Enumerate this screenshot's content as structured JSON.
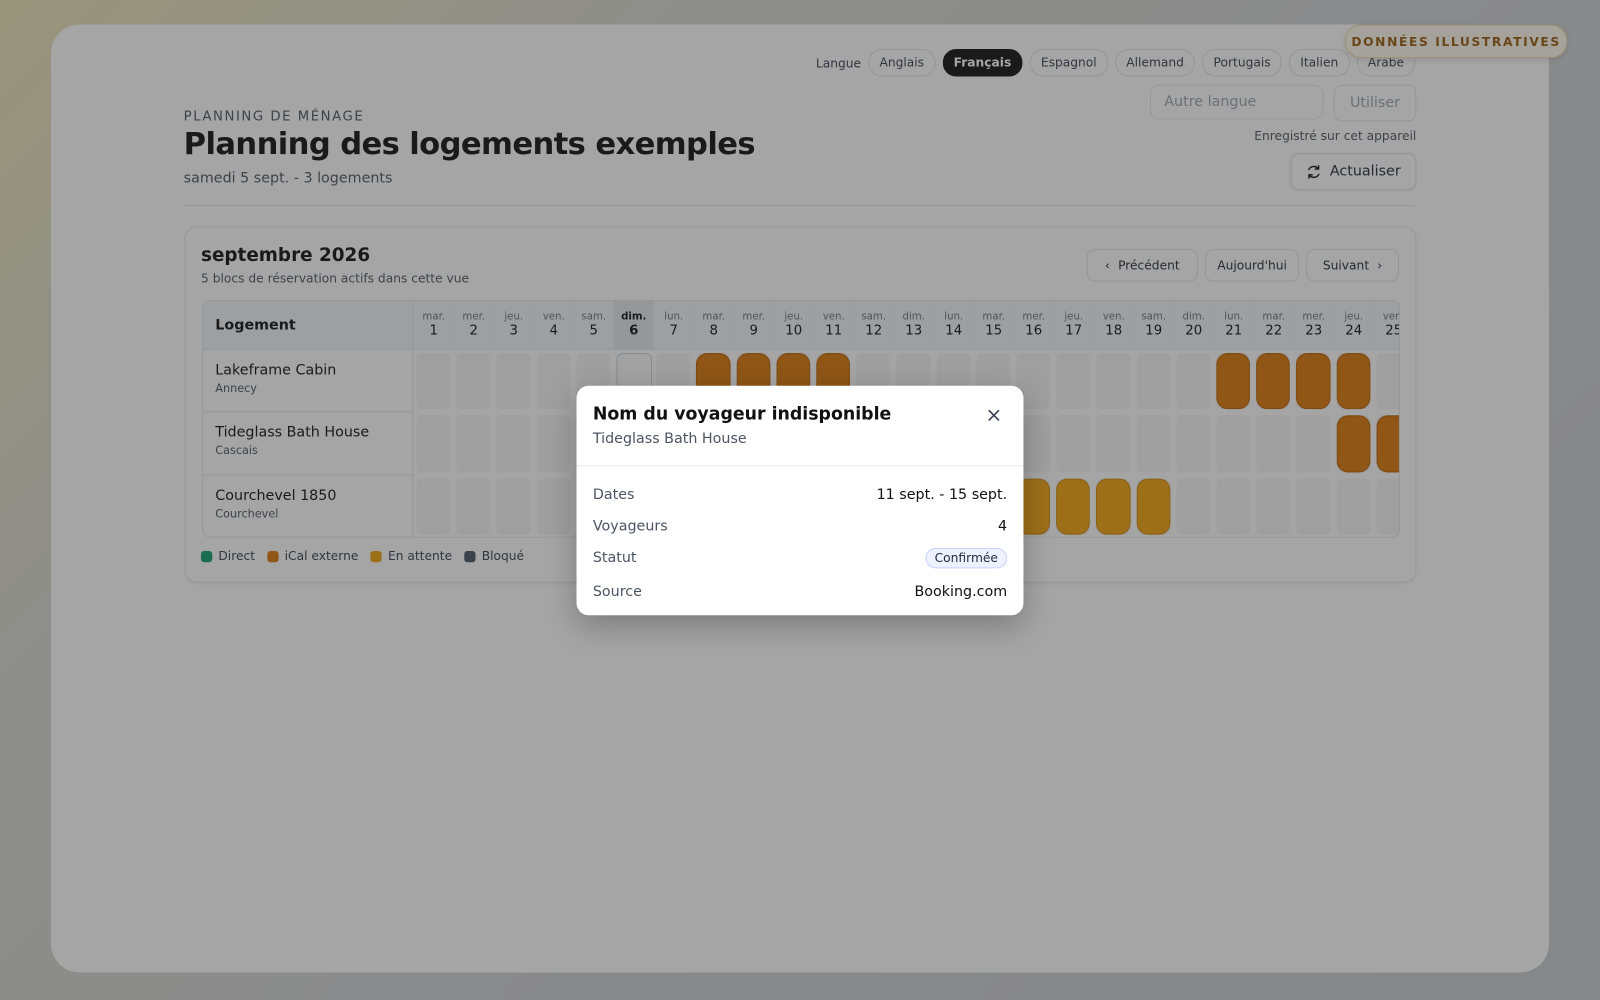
{
  "badge": "DONNÉES ILLUSTRATIVES",
  "language": {
    "label": "Langue",
    "options": [
      {
        "label": "Anglais"
      },
      {
        "label": "Français",
        "selected": true
      },
      {
        "label": "Espagnol"
      },
      {
        "label": "Allemand"
      },
      {
        "label": "Portugais"
      },
      {
        "label": "Italien"
      },
      {
        "label": "Arabe"
      }
    ]
  },
  "custom_language": {
    "placeholder": "Autre langue",
    "button": "Utiliser",
    "note": "Enregistré sur cet appareil"
  },
  "refresh": "Actualiser",
  "header": {
    "eyebrow": "PLANNING DE MÉNAGE",
    "title": "Planning des logements exemples",
    "subtitle": "samedi 5 sept. - 3 logements"
  },
  "calendar": {
    "month": "septembre 2026",
    "summary": "5 blocs de réservation actifs dans cette vue",
    "nav": {
      "previous": "Précédent",
      "today": "Aujourd'hui",
      "next": "Suivant"
    },
    "column_header": "Logement",
    "days": [
      {
        "weekday": "mar.",
        "day": 1
      },
      {
        "weekday": "mer.",
        "day": 2
      },
      {
        "weekday": "jeu.",
        "day": 3
      },
      {
        "weekday": "ven.",
        "day": 4
      },
      {
        "weekday": "sam.",
        "day": 5
      },
      {
        "weekday": "dim.",
        "day": 6,
        "today": true
      },
      {
        "weekday": "lun.",
        "day": 7
      },
      {
        "weekday": "mar.",
        "day": 8
      },
      {
        "weekday": "mer.",
        "day": 9
      },
      {
        "weekday": "jeu.",
        "day": 10
      },
      {
        "weekday": "ven.",
        "day": 11
      },
      {
        "weekday": "sam.",
        "day": 12
      },
      {
        "weekday": "dim.",
        "day": 13
      },
      {
        "weekday": "lun.",
        "day": 14
      },
      {
        "weekday": "mar.",
        "day": 15
      },
      {
        "weekday": "mer.",
        "day": 16
      },
      {
        "weekday": "jeu.",
        "day": 17
      },
      {
        "weekday": "ven.",
        "day": 18
      },
      {
        "weekday": "sam.",
        "day": 19
      },
      {
        "weekday": "dim.",
        "day": 20
      },
      {
        "weekday": "lun.",
        "day": 21
      },
      {
        "weekday": "mar.",
        "day": 22
      },
      {
        "weekday": "mer.",
        "day": 23
      },
      {
        "weekday": "jeu.",
        "day": 24
      },
      {
        "weekday": "ven.",
        "day": 25
      }
    ],
    "properties": [
      {
        "name": "Lakeframe Cabin",
        "city": "Annecy"
      },
      {
        "name": "Tideglass Bath House",
        "city": "Cascais"
      },
      {
        "name": "Courchevel 1850",
        "city": "Courchevel"
      }
    ],
    "legend": [
      {
        "label": "Direct",
        "color": "#0f9f6e"
      },
      {
        "label": "iCal externe",
        "color": "#d9770a"
      },
      {
        "label": "En attente",
        "color": "#f2a20f"
      },
      {
        "label": "Bloqué",
        "color": "#4b5563"
      }
    ]
  },
  "modal": {
    "title": "Nom du voyageur indisponible",
    "subtitle": "Tideglass Bath House",
    "rows": [
      {
        "label": "Dates",
        "value": "11 sept. - 15 sept."
      },
      {
        "label": "Voyageurs",
        "value": "4"
      },
      {
        "label": "Statut",
        "value": "Confirmée"
      },
      {
        "label": "Source",
        "value": "Booking.com"
      }
    ]
  }
}
